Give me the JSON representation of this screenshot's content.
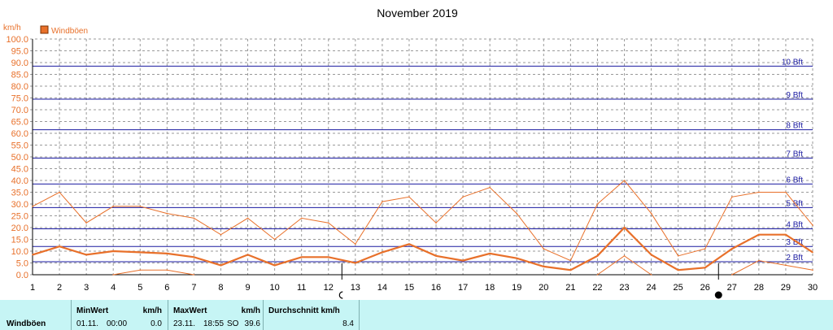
{
  "chart_data": {
    "type": "line",
    "title": "November 2019",
    "ylabel": "km/h",
    "ylim": [
      0,
      100
    ],
    "y_ticks": [
      "0.0",
      "5.0",
      "10.0",
      "15.0",
      "20.0",
      "25.0",
      "30.0",
      "35.0",
      "40.0",
      "45.0",
      "50.0",
      "55.0",
      "60.0",
      "65.0",
      "70.0",
      "75.0",
      "80.0",
      "85.0",
      "90.0",
      "95.0",
      "100.0"
    ],
    "x": [
      1,
      2,
      3,
      4,
      5,
      6,
      7,
      8,
      9,
      10,
      11,
      12,
      13,
      14,
      15,
      16,
      17,
      18,
      19,
      20,
      21,
      22,
      23,
      24,
      25,
      26,
      27,
      28,
      29,
      30
    ],
    "x_tick_labels": [
      "1",
      "2",
      "3",
      "4",
      "5",
      "6",
      "7",
      "8",
      "9",
      "10",
      "11",
      "12",
      "13",
      "14",
      "15",
      "16",
      "17",
      "18",
      "19",
      "20",
      "21",
      "22",
      "23",
      "24",
      "25",
      "26",
      "27",
      "28",
      "29",
      "30"
    ],
    "legend": [
      {
        "name": "Windböen",
        "color": "#e8702a"
      }
    ],
    "series": [
      {
        "role": "max",
        "color": "#e8702a",
        "values": [
          29,
          35,
          22,
          29,
          29,
          26,
          24,
          17,
          24,
          15,
          24,
          22,
          13,
          31,
          33,
          22,
          33,
          37,
          26,
          11,
          6,
          30,
          40,
          26,
          8,
          11,
          33,
          35,
          35,
          21
        ]
      },
      {
        "role": "avg",
        "color": "#e8702a",
        "values": [
          8.5,
          12,
          8.5,
          10,
          9.5,
          9,
          7.5,
          4,
          8.5,
          4,
          7.5,
          7.5,
          5,
          9.5,
          13,
          8,
          6,
          9,
          7,
          3.5,
          2,
          8,
          20,
          8.5,
          2,
          3,
          11,
          17,
          17,
          9.5
        ]
      },
      {
        "role": "min",
        "color": "#e8702a",
        "values": [
          null,
          null,
          null,
          0,
          2,
          2,
          0,
          null,
          null,
          null,
          null,
          null,
          null,
          null,
          null,
          null,
          null,
          null,
          null,
          null,
          null,
          0,
          8,
          0,
          null,
          null,
          0,
          6,
          4,
          2
        ]
      }
    ],
    "beaufort_lines": [
      {
        "label": "2 Bft",
        "value": 5.5
      },
      {
        "label": "3 Bft",
        "value": 12
      },
      {
        "label": "4 Bft",
        "value": 19.5
      },
      {
        "label": "5 Bft",
        "value": 28.5
      },
      {
        "label": "6 Bft",
        "value": 38.5
      },
      {
        "label": "7 Bft",
        "value": 49.5
      },
      {
        "label": "8 Bft",
        "value": 61.5
      },
      {
        "label": "9 Bft",
        "value": 74.5
      },
      {
        "label": "10 Bft",
        "value": 88.5
      }
    ],
    "beaufort_color": "#1a1aa0",
    "moon_phases": [
      {
        "day": 12.5,
        "phase": "first-quarter"
      },
      {
        "day": 26.5,
        "phase": "new-moon"
      }
    ],
    "grid": true
  },
  "footer": {
    "row_label": "Windböen",
    "min": {
      "header": "MinWert",
      "unit": "km/h",
      "date": "01.11.",
      "time": "00:00",
      "value": "0.0"
    },
    "max": {
      "header": "MaxWert",
      "unit": "km/h",
      "date": "23.11.",
      "time": "18:55",
      "dir": "SO",
      "value": "39.6"
    },
    "avg": {
      "header": "Durchschnitt km/h",
      "value": "8.4"
    }
  }
}
